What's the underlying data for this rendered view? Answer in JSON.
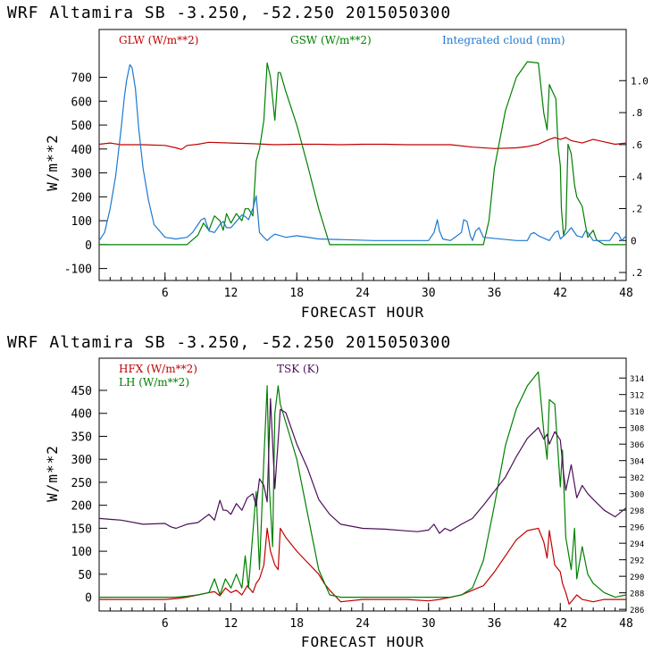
{
  "chart_data": [
    {
      "type": "line",
      "title": "WRF   Altamira  SB  -3.250, -52.250  2015050300",
      "xlabel": "FORECAST HOUR",
      "ylabel": "W/m**2",
      "xlim": [
        0,
        48
      ],
      "ylim": [
        -150,
        900
      ],
      "xticks": [
        6,
        12,
        18,
        24,
        30,
        36,
        42,
        48
      ],
      "yticks": [
        -100,
        0,
        100,
        200,
        300,
        400,
        500,
        600,
        700
      ],
      "y2lim": [
        -0.25,
        1.32
      ],
      "y2ticks": [
        -0.2,
        0,
        0.2,
        0.4,
        0.6,
        0.8,
        1.0
      ],
      "y2ticklabels": [
        ".2",
        "0",
        ".2",
        ".4",
        ".6",
        ".8",
        "1.0"
      ],
      "series": [
        {
          "name": "GLW (W/m**2)",
          "color": "#c00000",
          "axis": "left",
          "x": [
            0,
            1,
            2,
            4,
            6,
            7,
            7.5,
            8,
            9,
            10,
            12,
            14,
            16,
            18,
            20,
            22,
            24,
            26,
            28,
            30,
            32,
            34,
            36,
            38,
            39,
            40,
            41,
            41.5,
            42,
            42.5,
            43,
            44,
            45,
            46,
            47,
            48
          ],
          "y": [
            420,
            425,
            418,
            418,
            415,
            405,
            398,
            415,
            420,
            428,
            425,
            422,
            418,
            420,
            420,
            418,
            420,
            420,
            418,
            418,
            418,
            408,
            402,
            405,
            410,
            420,
            440,
            448,
            440,
            448,
            435,
            425,
            440,
            430,
            420,
            425
          ]
        },
        {
          "name": "GSW (W/m**2)",
          "color": "#008000",
          "axis": "left",
          "x": [
            0,
            8,
            9,
            9.5,
            10,
            10.5,
            11,
            11.3,
            11.6,
            12,
            12.5,
            13,
            13.3,
            13.6,
            14,
            14.3,
            14.6,
            15,
            15.3,
            15.6,
            16,
            16.3,
            16.5,
            17,
            18,
            19,
            20,
            21,
            21.2,
            35,
            35.5,
            36,
            37,
            38,
            39,
            40,
            40.5,
            40.8,
            41,
            41.3,
            41.6,
            41.8,
            42,
            42.1,
            42.3,
            42.5,
            42.7,
            43,
            43.3,
            43.5,
            44,
            44.3,
            44.5,
            45,
            45.3,
            46,
            48
          ],
          "y": [
            0,
            0,
            40,
            90,
            60,
            120,
            100,
            60,
            130,
            90,
            130,
            100,
            150,
            150,
            120,
            350,
            400,
            520,
            760,
            700,
            520,
            720,
            720,
            640,
            500,
            330,
            150,
            0,
            0,
            0,
            100,
            320,
            560,
            700,
            765,
            760,
            550,
            480,
            670,
            640,
            610,
            410,
            330,
            150,
            40,
            70,
            420,
            380,
            250,
            200,
            160,
            80,
            30,
            60,
            20,
            0,
            0
          ]
        },
        {
          "name": "Integrated cloud (mm)",
          "color": "#1e78d2",
          "axis": "right",
          "x": [
            0,
            0.5,
            1,
            1.5,
            2,
            2.3,
            2.5,
            2.8,
            3,
            3.3,
            3.6,
            4,
            4.5,
            5,
            6,
            7,
            8,
            8.5,
            9,
            9.3,
            9.6,
            10,
            10.5,
            11,
            11.3,
            11.6,
            12,
            12.5,
            13,
            13.3,
            13.6,
            14,
            14.3,
            14.6,
            15,
            15.3,
            15.6,
            16,
            17,
            18,
            20,
            25,
            30,
            30.5,
            30.8,
            31,
            31.3,
            32,
            33,
            33.2,
            33.5,
            33.8,
            34,
            34.3,
            34.6,
            35,
            38,
            39,
            39.3,
            39.6,
            40,
            41,
            41.5,
            41.8,
            42,
            42.5,
            43,
            43.5,
            44,
            44.3,
            44.5,
            45,
            46,
            46.5,
            47,
            47.3,
            47.6,
            48
          ],
          "y": [
            0,
            0.05,
            0.2,
            0.4,
            0.7,
            0.9,
            1.0,
            1.1,
            1.08,
            0.95,
            0.7,
            0.45,
            0.25,
            0.1,
            0.02,
            0.01,
            0.02,
            0.05,
            0.1,
            0.13,
            0.14,
            0.06,
            0.05,
            0.1,
            0.12,
            0.08,
            0.08,
            0.12,
            0.16,
            0.15,
            0.13,
            0.2,
            0.28,
            0.05,
            0.02,
            0,
            0.02,
            0.04,
            0.02,
            0.03,
            0.01,
            0,
            0,
            0.05,
            0.13,
            0.06,
            0.01,
            0,
            0.05,
            0.13,
            0.12,
            0.03,
            0,
            0.06,
            0.08,
            0.02,
            0,
            0,
            0.04,
            0.05,
            0.03,
            0,
            0.05,
            0.06,
            0.01,
            0.04,
            0.08,
            0.03,
            0.02,
            0.06,
            0.05,
            0,
            0,
            0,
            0.05,
            0.04,
            0,
            0.03
          ]
        }
      ]
    },
    {
      "type": "line",
      "title": "WRF   Altamira  SB  -3.250, -52.250  2015050300",
      "xlabel": "FORECAST HOUR",
      "ylabel": "W/m**2",
      "xlim": [
        0,
        48
      ],
      "ylim": [
        -30,
        520
      ],
      "xticks": [
        6,
        12,
        18,
        24,
        30,
        36,
        42,
        48
      ],
      "yticks": [
        0,
        50,
        100,
        150,
        200,
        250,
        300,
        350,
        400,
        450
      ],
      "y2lim": [
        285.8,
        316.4
      ],
      "y2ticks": [
        286,
        288,
        290,
        292,
        294,
        296,
        298,
        300,
        302,
        304,
        306,
        308,
        310,
        312,
        314
      ],
      "series": [
        {
          "name": "HFX (W/m**2)",
          "color": "#c00000",
          "axis": "left",
          "x": [
            0,
            6,
            7,
            8,
            9,
            10,
            10.5,
            11,
            11.5,
            12,
            12.5,
            13,
            13.5,
            14,
            14.3,
            14.6,
            15,
            15.3,
            15.6,
            16,
            16.3,
            16.5,
            17,
            18,
            19,
            20,
            20.5,
            21,
            22,
            24,
            28,
            30,
            31,
            32,
            33,
            34,
            35,
            36,
            37,
            38,
            39,
            40,
            40.5,
            40.8,
            41,
            41.5,
            42,
            42.2,
            42.5,
            42.8,
            43,
            43.5,
            44,
            45,
            46,
            48
          ],
          "y": [
            -5,
            -5,
            -3,
            0,
            5,
            10,
            12,
            3,
            20,
            10,
            15,
            5,
            25,
            10,
            30,
            40,
            70,
            150,
            100,
            70,
            60,
            150,
            130,
            100,
            75,
            50,
            30,
            15,
            -10,
            -5,
            -5,
            -8,
            -5,
            0,
            5,
            15,
            25,
            55,
            90,
            125,
            145,
            150,
            120,
            85,
            145,
            70,
            55,
            30,
            10,
            -15,
            -10,
            5,
            -5,
            -10,
            -5,
            -5
          ]
        },
        {
          "name": "LH  (W/m**2)",
          "color": "#008000",
          "axis": "left",
          "x": [
            0,
            6,
            7,
            8,
            9,
            10,
            10.5,
            11,
            11.5,
            12,
            12.5,
            13,
            13.3,
            13.6,
            14,
            14.3,
            14.6,
            15,
            15.3,
            15.5,
            15.8,
            16,
            16.3,
            16.5,
            17,
            18,
            19,
            20,
            21,
            22,
            24,
            28,
            30,
            31,
            32,
            33,
            34,
            35,
            36,
            37,
            38,
            39,
            40,
            40.5,
            40.8,
            41,
            41.5,
            42,
            42.2,
            42.5,
            43,
            43.3,
            43.5,
            44,
            44.5,
            45,
            46,
            47,
            48
          ],
          "y": [
            0,
            0,
            0,
            2,
            5,
            10,
            40,
            5,
            40,
            20,
            50,
            20,
            90,
            20,
            140,
            230,
            60,
            300,
            460,
            240,
            110,
            400,
            460,
            420,
            380,
            300,
            180,
            60,
            5,
            0,
            0,
            0,
            0,
            0,
            0,
            5,
            20,
            80,
            200,
            330,
            410,
            460,
            490,
            360,
            300,
            430,
            420,
            240,
            320,
            130,
            60,
            150,
            40,
            110,
            50,
            30,
            10,
            0,
            5
          ]
        },
        {
          "name": "TSK (K)",
          "color": "#4b0f5a",
          "axis": "right",
          "x": [
            0,
            2,
            4,
            6,
            6.5,
            7,
            8,
            9,
            10,
            10.5,
            11,
            11.3,
            11.6,
            12,
            12.5,
            13,
            13.5,
            14,
            14.3,
            14.6,
            15,
            15.3,
            15.6,
            16,
            16.5,
            17,
            18,
            19,
            20,
            21,
            22,
            24,
            26,
            28,
            29,
            30,
            30.5,
            31,
            31.5,
            32,
            33,
            34,
            35,
            36,
            37,
            38,
            39,
            40,
            40.5,
            40.8,
            41,
            41.5,
            42,
            42.3,
            42.5,
            43,
            43.5,
            44,
            44.5,
            45,
            46,
            47,
            48
          ],
          "y": [
            297,
            296.8,
            296.3,
            296.4,
            296,
            295.8,
            296.3,
            296.5,
            297.5,
            296.8,
            299.2,
            298,
            298,
            297.5,
            298.8,
            298,
            299.5,
            300,
            298.5,
            301.8,
            301,
            299,
            311.5,
            300.6,
            310.2,
            309.8,
            306,
            303,
            299.3,
            297.5,
            296.3,
            295.8,
            295.7,
            295.5,
            295.4,
            295.6,
            296.3,
            295.2,
            295.8,
            295.5,
            296.3,
            297,
            298.6,
            300.3,
            302,
            304.5,
            306.7,
            308,
            306.6,
            307.2,
            306,
            307.5,
            306.5,
            302.5,
            300.4,
            303.5,
            299.5,
            301,
            300,
            299.3,
            298,
            297.2,
            298.3
          ]
        }
      ]
    }
  ]
}
